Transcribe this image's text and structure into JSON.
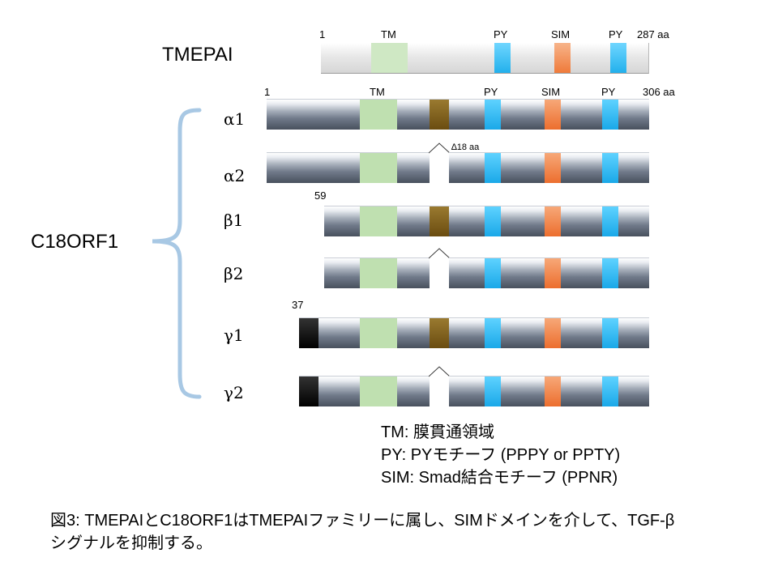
{
  "tmepai": {
    "name": "TMEPAI",
    "pos_start": "1",
    "pos_end": "287 aa",
    "domains": {
      "tm": "TM",
      "py1": "PY",
      "sim": "SIM",
      "py2": "PY"
    }
  },
  "c18": {
    "name": "C18ORF1",
    "pos_start": "1",
    "pos_end": "306 aa",
    "domains": {
      "tm": "TM",
      "py1": "PY",
      "sim": "SIM",
      "py2": "PY"
    },
    "deletion_label": "∆18 aa",
    "beta_start": "59",
    "gamma_start": "37",
    "isoforms": [
      "α1",
      "α2",
      "β1",
      "β2",
      "γ1",
      "γ2"
    ]
  },
  "legend": {
    "tm": "TM: 膜貫通領域",
    "py": "PY: PYモチーフ (PPPY or PPTY)",
    "sim": "SIM: Smad結合モチーフ (PPNR)"
  },
  "caption": {
    "line1": "図3: TMEPAIとC18ORF1はTMEPAIファミリーに属し、SIMドメインを介して、TGF-β",
    "line2": "シグナルを抑制する。"
  },
  "colors": {
    "tm": "#bfe0b0",
    "py": "#22b8f0",
    "sim": "#f08040",
    "deletion_region": "#7a5a1a",
    "gamma_extension": "#000000",
    "brace": "#a8c8e4"
  }
}
